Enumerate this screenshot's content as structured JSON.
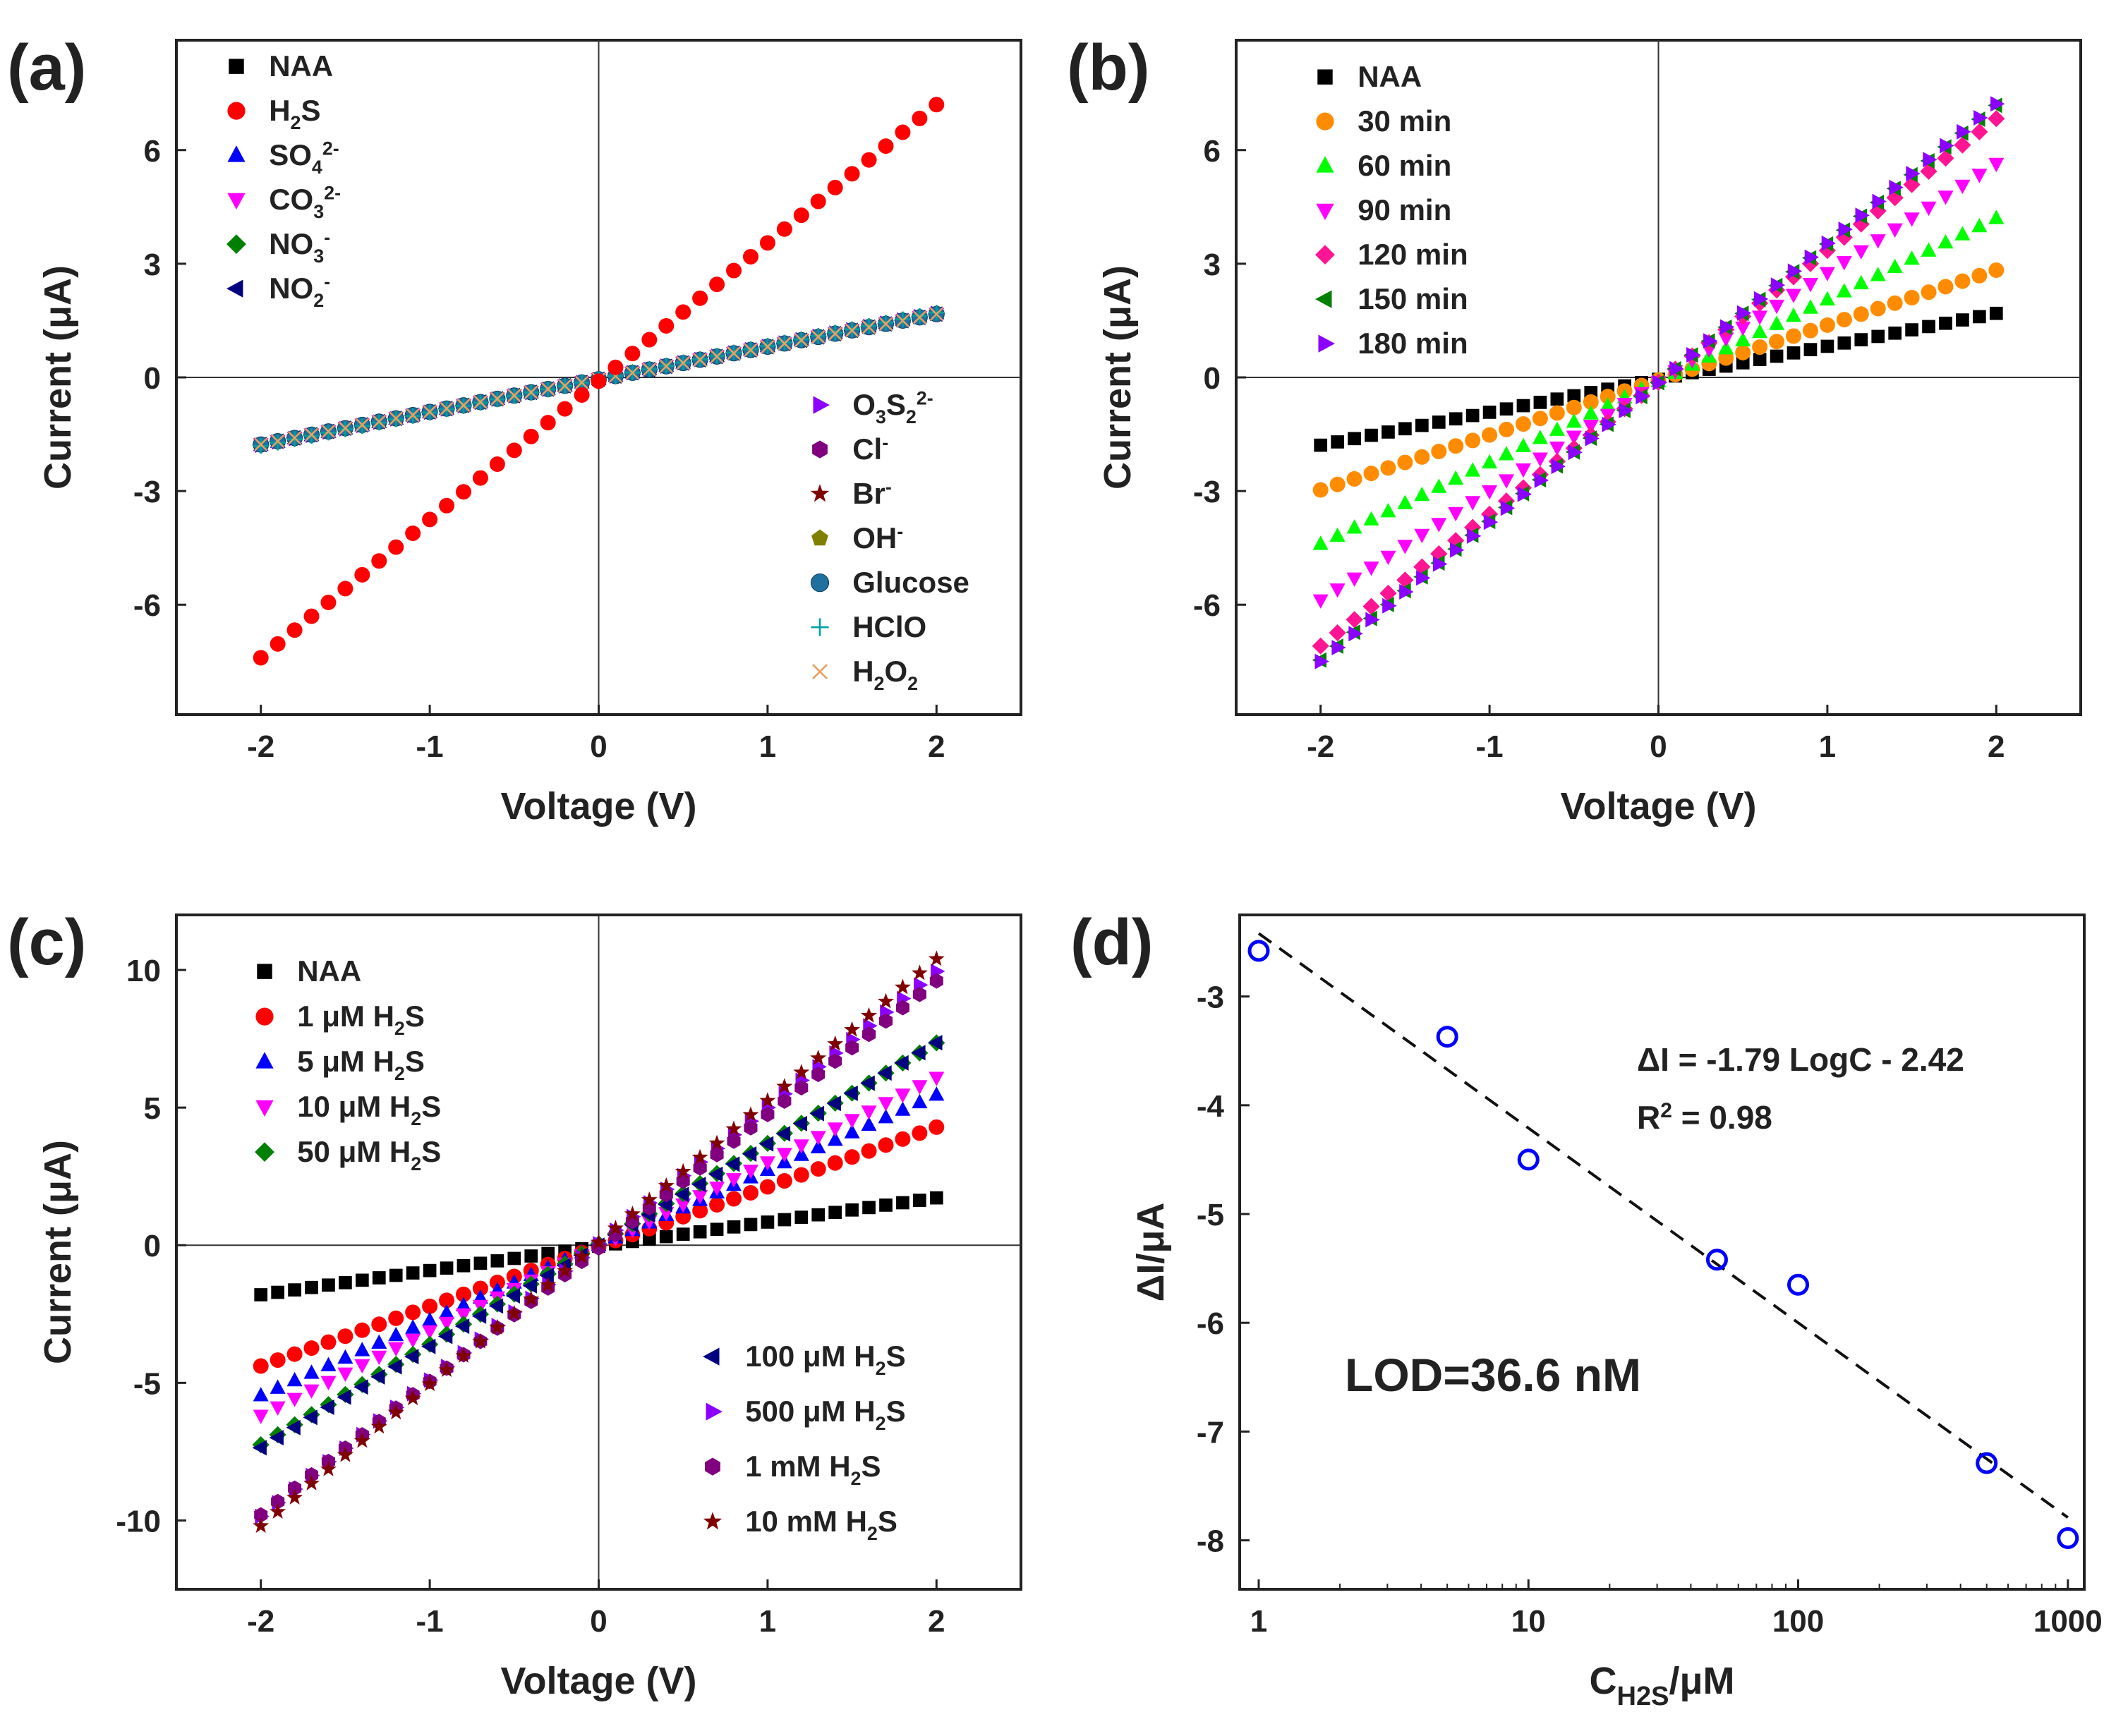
{
  "chart_data": [
    {
      "panel": "a",
      "panel_label": "(a)",
      "type": "scatter",
      "xlabel": "Voltage (V)",
      "ylabel": "Current (μA)",
      "xlim": [
        -2.5,
        2.5
      ],
      "ylim": [
        -8.9,
        8.9
      ],
      "xticks": [
        -2,
        -1,
        0,
        1,
        2
      ],
      "yticks": [
        -6,
        -3,
        0,
        3,
        6
      ],
      "x_range": [
        -2,
        2
      ],
      "n_points": 41,
      "series": [
        {
          "name": "NAA",
          "sup": "",
          "sub": "",
          "slope": 0.86,
          "offset": -0.05,
          "color": "#000000",
          "marker": "square"
        },
        {
          "name": "H",
          "sub": "2",
          "tail": "S",
          "sup": "",
          "slope": 3.65,
          "offset": -0.1,
          "color": "#ff0000",
          "marker": "circle"
        },
        {
          "name": "SO",
          "sub": "4",
          "sup": "2-",
          "slope": 0.87,
          "offset": -0.05,
          "color": "#0000ff",
          "marker": "triangle-up"
        },
        {
          "name": "CO",
          "sub": "3",
          "sup": "2-",
          "slope": 0.86,
          "offset": -0.04,
          "color": "#ff00ff",
          "marker": "triangle-down"
        },
        {
          "name": "NO",
          "sub": "3",
          "sup": "-",
          "slope": 0.87,
          "offset": -0.05,
          "color": "#008000",
          "marker": "diamond"
        },
        {
          "name": "NO",
          "sub": "2",
          "sup": "-",
          "slope": 0.86,
          "offset": -0.05,
          "color": "#000080",
          "marker": "triangle-left"
        },
        {
          "name": "O",
          "sub": "3",
          "mid": "S",
          "sub2": "2",
          "sup": "2-",
          "slope": 0.87,
          "offset": -0.05,
          "color": "#8b00ff",
          "marker": "triangle-right"
        },
        {
          "name": "Cl",
          "sub": "",
          "sup": "-",
          "slope": 0.86,
          "offset": -0.05,
          "color": "#800080",
          "marker": "hexagon"
        },
        {
          "name": "Br",
          "sub": "",
          "sup": "-",
          "slope": 0.87,
          "offset": -0.05,
          "color": "#800000",
          "marker": "star"
        },
        {
          "name": "OH",
          "sub": "",
          "sup": "-",
          "slope": 0.86,
          "offset": -0.05,
          "color": "#808000",
          "marker": "pentagon"
        },
        {
          "name": "Glucose",
          "sub": "",
          "sup": "",
          "slope": 0.86,
          "offset": -0.05,
          "color": "#1f6f9f",
          "marker": "sphere"
        },
        {
          "name": "HClO",
          "sub": "",
          "sup": "",
          "slope": 0.88,
          "offset": -0.05,
          "color": "#00a0a0",
          "marker": "plus"
        },
        {
          "name": "H",
          "sub": "2",
          "tail": "O",
          "sub2": "2",
          "sup": "",
          "slope": 0.86,
          "offset": -0.05,
          "color": "#e8a060",
          "marker": "cross"
        }
      ]
    },
    {
      "panel": "b",
      "panel_label": "(b)",
      "type": "scatter",
      "xlabel": "Voltage (V)",
      "ylabel": "Current (μA)",
      "xlim": [
        -2.5,
        2.5
      ],
      "ylim": [
        -8.9,
        8.9
      ],
      "xticks": [
        -2,
        -1,
        0,
        1,
        2
      ],
      "yticks": [
        -6,
        -3,
        0,
        3,
        6
      ],
      "x_range": [
        -2,
        2
      ],
      "n_points": 41,
      "series": [
        {
          "name": "NAA",
          "slope": 0.87,
          "offset": -0.05,
          "color": "#000000",
          "marker": "square"
        },
        {
          "name": "30 min",
          "slope": 1.45,
          "offset": -0.07,
          "color": "#ff8c00",
          "marker": "circle"
        },
        {
          "name": "60 min",
          "slope": 2.15,
          "offset": -0.1,
          "color": "#00ff00",
          "marker": "triangle-up"
        },
        {
          "name": "90 min",
          "slope": 2.88,
          "offset": -0.12,
          "color": "#ff00ff",
          "marker": "triangle-down"
        },
        {
          "name": "120 min",
          "slope": 3.48,
          "offset": -0.13,
          "color": "#ff1493",
          "marker": "diamond"
        },
        {
          "name": "150 min",
          "slope": 3.66,
          "offset": -0.14,
          "color": "#008000",
          "marker": "triangle-left"
        },
        {
          "name": "180 min",
          "slope": 3.68,
          "offset": -0.14,
          "color": "#8b00ff",
          "marker": "triangle-right"
        }
      ]
    },
    {
      "panel": "c",
      "panel_label": "(c)",
      "type": "scatter",
      "xlabel": "Voltage (V)",
      "ylabel": "Current (μA)",
      "xlim": [
        -2.5,
        2.5
      ],
      "ylim": [
        -12.5,
        12.0
      ],
      "xticks": [
        -2,
        -1,
        0,
        1,
        2
      ],
      "yticks": [
        -10,
        -5,
        0,
        5,
        10
      ],
      "x_range": [
        -2,
        2
      ],
      "n_points": 41,
      "series": [
        {
          "name": "NAA",
          "slope": 0.88,
          "offset": -0.04,
          "color": "#000000",
          "marker": "square"
        },
        {
          "name": "1 μM H",
          "sub": "2",
          "tail": "S",
          "slope": 2.17,
          "offset": -0.05,
          "color": "#ff0000",
          "marker": "circle"
        },
        {
          "name": "5 μM H",
          "sub": "2",
          "tail": "S",
          "slope": 2.73,
          "offset": 0.0,
          "color": "#0000ff",
          "marker": "triangle-up"
        },
        {
          "name": "10 μM H",
          "sub": "2",
          "tail": "S",
          "slope": 3.07,
          "offset": -0.05,
          "color": "#ff00ff",
          "marker": "triangle-down"
        },
        {
          "name": "50 μM H",
          "sub": "2",
          "tail": "S",
          "slope": 3.65,
          "offset": 0.05,
          "color": "#008000",
          "marker": "diamond"
        },
        {
          "name": "100 μM H",
          "sub": "2",
          "tail": "S",
          "slope": 3.68,
          "offset": 0.0,
          "color": "#000080",
          "marker": "triangle-left"
        },
        {
          "name": "500 μM H",
          "sub": "2",
          "tail": "S",
          "slope": 4.95,
          "offset": 0.05,
          "color": "#8b00ff",
          "marker": "triangle-right"
        },
        {
          "name": "1 mM H",
          "sub": "2",
          "tail": "S",
          "slope": 4.85,
          "offset": -0.1,
          "color": "#800080",
          "marker": "hexagon"
        },
        {
          "name": "10 mM H",
          "sub": "2",
          "tail": "S",
          "slope": 5.15,
          "offset": 0.1,
          "color": "#800000",
          "marker": "star"
        }
      ]
    },
    {
      "panel": "d",
      "panel_label": "(d)",
      "type": "scatter",
      "xscale": "log",
      "xlabel": "C",
      "xlabel_sub": "H2S",
      "xlabel_tail": "/μM",
      "ylabel": "ΔI/μA",
      "xlim": [
        0.85,
        1150
      ],
      "ylim": [
        -8.45,
        -2.25
      ],
      "xticks": [
        1,
        10,
        100,
        1000
      ],
      "xtick_labels": [
        "1",
        "10",
        "100",
        "1000"
      ],
      "yticks": [
        -8,
        -7,
        -6,
        -5,
        -4,
        -3
      ],
      "points": [
        {
          "x": 1,
          "y": -2.58
        },
        {
          "x": 5,
          "y": -3.37
        },
        {
          "x": 10,
          "y": -4.5
        },
        {
          "x": 50,
          "y": -5.42
        },
        {
          "x": 100,
          "y": -5.65
        },
        {
          "x": 500,
          "y": -7.29
        },
        {
          "x": 1000,
          "y": -7.98
        }
      ],
      "point_color": "#0000ff",
      "fit": {
        "slope": -1.79,
        "intercept": -2.42,
        "x_from": 1,
        "x_to": 1000
      },
      "equation": "ΔI = -1.79 LogC - 2.42",
      "r2_label": "R",
      "r2_sup": "2",
      "r2_value": " = 0.98",
      "lod": "LOD=36.6 nM",
      "lod_color": "#e8111b"
    }
  ]
}
